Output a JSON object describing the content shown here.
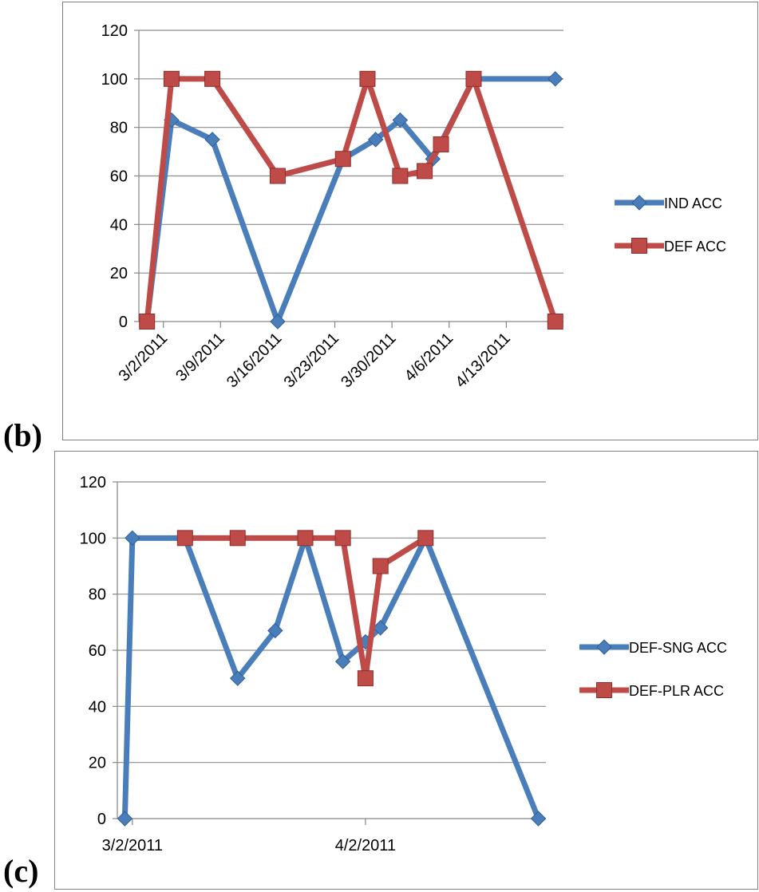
{
  "panels": {
    "b": {
      "label": "(b)"
    },
    "c": {
      "label": "(c)"
    }
  },
  "chart_data": [
    {
      "panel": "(b)",
      "type": "line",
      "title": "",
      "xlabel": "",
      "ylabel": "",
      "x_tick_labels": [
        "3/2/2011",
        "3/9/2011",
        "3/16/2011",
        "3/23/2011",
        "3/30/2011",
        "4/6/2011",
        "4/13/2011"
      ],
      "y_tick_labels": [
        "0",
        "20",
        "40",
        "60",
        "80",
        "100",
        "120"
      ],
      "ylim": [
        0,
        120
      ],
      "xlim": [
        "2/27/2011",
        "4/20/2011"
      ],
      "grid": "horizontal",
      "legend_position": "right",
      "series": [
        {
          "name": "IND ACC",
          "color": "#4a7ebb",
          "marker": "diamond",
          "x": [
            "2/28/2011",
            "3/3/2011",
            "3/8/2011",
            "3/16/2011",
            "3/24/2011",
            "3/28/2011",
            "3/31/2011",
            "4/4/2011",
            "4/9/2011",
            "4/19/2011"
          ],
          "y": [
            0,
            83,
            75,
            0,
            67,
            75,
            83,
            67,
            100,
            100
          ]
        },
        {
          "name": "DEF ACC",
          "color": "#be4b48",
          "marker": "square",
          "x": [
            "2/28/2011",
            "3/3/2011",
            "3/8/2011",
            "3/16/2011",
            "3/24/2011",
            "3/27/2011",
            "3/31/2011",
            "4/3/2011",
            "4/5/2011",
            "4/9/2011",
            "4/19/2011"
          ],
          "y": [
            0,
            100,
            100,
            60,
            67,
            100,
            60,
            62,
            73,
            100,
            0
          ]
        }
      ]
    },
    {
      "panel": "(c)",
      "type": "line",
      "title": "",
      "xlabel": "",
      "ylabel": "",
      "x_tick_labels": [
        "3/2/2011",
        "4/2/2011"
      ],
      "y_tick_labels": [
        "0",
        "20",
        "40",
        "60",
        "80",
        "100",
        "120"
      ],
      "ylim": [
        0,
        120
      ],
      "xlim": [
        "2/28/2011",
        "4/26/2011"
      ],
      "grid": "horizontal",
      "legend_position": "right",
      "series": [
        {
          "name": "DEF-SNG ACC",
          "color": "#4a7ebb",
          "marker": "diamond",
          "x": [
            "3/1/2011",
            "3/2/2011",
            "3/9/2011",
            "3/16/2011",
            "3/21/2011",
            "3/25/2011",
            "3/30/2011",
            "4/2/2011",
            "4/4/2011",
            "4/10/2011",
            "4/25/2011"
          ],
          "y": [
            0,
            100,
            100,
            50,
            67,
            100,
            56,
            63,
            68,
            100,
            0
          ]
        },
        {
          "name": "DEF-PLR ACC",
          "color": "#be4b48",
          "marker": "square",
          "x": [
            "3/9/2011",
            "3/16/2011",
            "3/25/2011",
            "3/30/2011",
            "4/2/2011",
            "4/4/2011",
            "4/10/2011"
          ],
          "y": [
            100,
            100,
            100,
            100,
            50,
            90,
            100
          ]
        }
      ]
    }
  ]
}
